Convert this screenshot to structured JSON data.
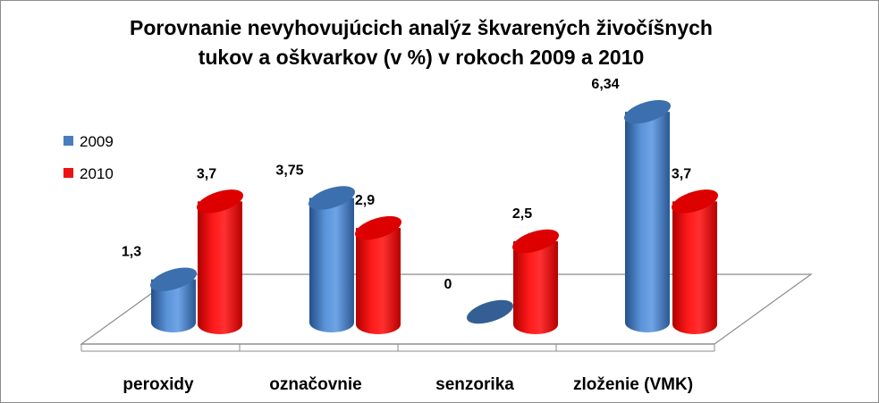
{
  "chart_data": {
    "type": "bar",
    "title": "Porovnanie nevyhovujúcich analýz škvarených živočíšnych tukov a oškvarkov (v %) v rokoch 2009 a 2010",
    "title_lines": [
      "Porovnanie nevyhovujúcich analýz škvarených živočíšnych",
      "tukov a oškvarkov (v %) v rokoch 2009 a 2010"
    ],
    "categories": [
      "peroxidy",
      "označovnie",
      "senzorika",
      "zloženie (VMK)"
    ],
    "series": [
      {
        "name": "2009",
        "values": [
          1.3,
          3.75,
          0,
          6.34
        ],
        "labels": [
          "1,3",
          "3,75",
          "0",
          "6,34"
        ],
        "color": "#4a7ebb"
      },
      {
        "name": "2010",
        "values": [
          3.7,
          2.9,
          2.5,
          3.7
        ],
        "labels": [
          "3,7",
          "2,9",
          "2,5",
          "3,7"
        ],
        "color": "#ee1111"
      }
    ],
    "legend_position": "left",
    "grid": false,
    "three_d": true
  }
}
